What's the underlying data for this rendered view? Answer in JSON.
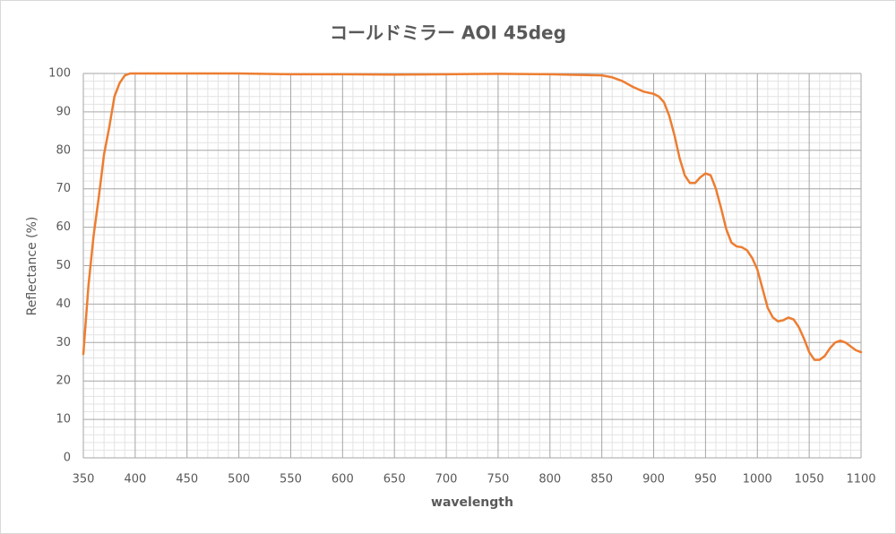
{
  "chart_data": {
    "type": "line",
    "title": "コールドミラー AOI 45deg",
    "x_label": "wavelength",
    "y_label": "Reflectance (%)",
    "grid": true,
    "xlim": [
      350,
      1100
    ],
    "ylim": [
      0,
      100
    ],
    "xticks": [
      350,
      400,
      450,
      500,
      550,
      600,
      650,
      700,
      750,
      800,
      850,
      900,
      950,
      1000,
      1050,
      1100
    ],
    "yticks": [
      0,
      10,
      20,
      30,
      40,
      50,
      60,
      70,
      80,
      90,
      100
    ],
    "xminorticks": [
      360,
      370,
      380,
      390,
      410,
      420,
      430,
      440,
      460,
      470,
      480,
      490,
      510,
      520,
      530,
      540,
      560,
      570,
      580,
      590,
      610,
      620,
      630,
      640,
      660,
      670,
      680,
      690,
      710,
      720,
      730,
      740,
      760,
      770,
      780,
      790,
      810,
      820,
      830,
      840,
      860,
      870,
      880,
      890,
      910,
      920,
      930,
      940,
      960,
      970,
      980,
      990,
      1010,
      1020,
      1030,
      1040,
      1060,
      1070,
      1080,
      1090
    ],
    "yminorticks": [
      2,
      4,
      6,
      8,
      12,
      14,
      16,
      18,
      22,
      24,
      26,
      28,
      32,
      34,
      36,
      38,
      42,
      44,
      46,
      48,
      52,
      54,
      56,
      58,
      62,
      64,
      66,
      68,
      72,
      74,
      76,
      78,
      82,
      84,
      86,
      88,
      92,
      94,
      96,
      98
    ],
    "x": [
      350,
      355,
      360,
      365,
      370,
      375,
      380,
      385,
      390,
      395,
      400,
      450,
      500,
      550,
      600,
      650,
      700,
      750,
      800,
      850,
      860,
      870,
      880,
      890,
      900,
      905,
      910,
      915,
      920,
      925,
      930,
      935,
      940,
      945,
      950,
      955,
      960,
      965,
      970,
      975,
      980,
      985,
      990,
      995,
      1000,
      1005,
      1010,
      1015,
      1020,
      1025,
      1030,
      1035,
      1040,
      1045,
      1050,
      1055,
      1060,
      1065,
      1070,
      1075,
      1080,
      1085,
      1090,
      1095,
      1100
    ],
    "series": [
      {
        "name": "Reflectance",
        "color": "#ed7d31",
        "values": [
          27,
          45,
          58,
          68,
          79,
          86,
          94,
          97.5,
          99.5,
          100,
          100,
          100,
          100,
          99.8,
          99.8,
          99.7,
          99.8,
          99.9,
          99.8,
          99.5,
          99,
          98,
          96.5,
          95.3,
          94.7,
          94,
          92.5,
          89,
          84,
          78,
          73.5,
          71.5,
          71.5,
          73,
          74,
          73.5,
          70,
          65,
          59.5,
          56,
          55,
          54.8,
          54,
          52,
          49,
          44,
          39,
          36.5,
          35.5,
          35.8,
          36.5,
          36,
          34,
          31,
          27.5,
          25.5,
          25.5,
          26.5,
          28.5,
          30,
          30.5,
          30,
          29,
          28,
          27.5
        ]
      }
    ]
  }
}
